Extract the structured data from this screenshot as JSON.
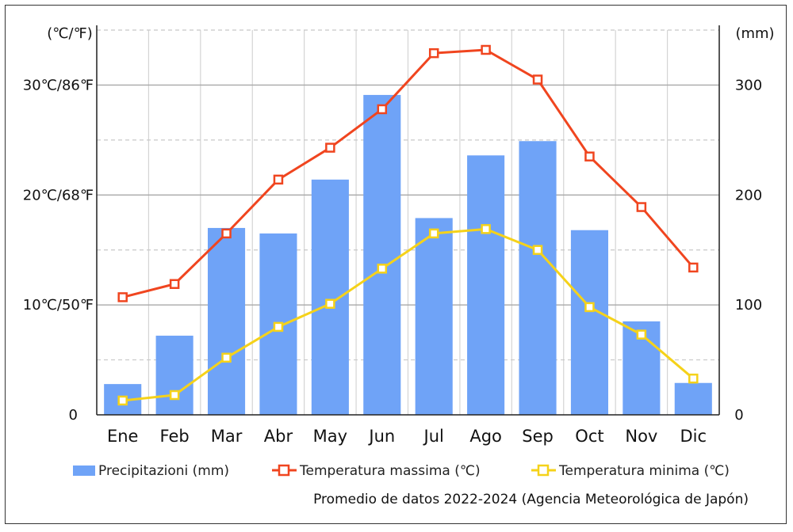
{
  "chart_data": {
    "type": "bar+line",
    "categories": [
      "Ene",
      "Feb",
      "Mar",
      "Abr",
      "May",
      "Jun",
      "Jul",
      "Ago",
      "Sep",
      "Oct",
      "Nov",
      "Dic"
    ],
    "left_axis": {
      "unit_label": "(℃/℉)",
      "ylim": [
        0,
        35
      ],
      "ticks": [
        {
          "value": 0,
          "label": "0"
        },
        {
          "value": 10,
          "label": "10℃/50℉"
        },
        {
          "value": 20,
          "label": "20℃/68℉"
        },
        {
          "value": 30,
          "label": "30℃/86℉"
        }
      ]
    },
    "right_axis": {
      "unit_label": "(mm)",
      "ylim": [
        0,
        350
      ],
      "ticks": [
        {
          "value": 0,
          "label": "0"
        },
        {
          "value": 100,
          "label": "100"
        },
        {
          "value": 200,
          "label": "200"
        },
        {
          "value": 300,
          "label": "300"
        }
      ]
    },
    "series": [
      {
        "name": "Precipitazioni (mm)",
        "type": "bar",
        "axis": "right",
        "color": "#6fa3f7",
        "values": [
          28,
          72,
          170,
          165,
          214,
          291,
          179,
          236,
          249,
          168,
          85,
          29
        ]
      },
      {
        "name": "Temperatura massima (℃)",
        "type": "line",
        "axis": "left",
        "color": "#f0451f",
        "values": [
          10.7,
          11.9,
          16.5,
          21.4,
          24.3,
          27.8,
          32.9,
          33.2,
          30.5,
          23.5,
          18.9,
          13.4
        ]
      },
      {
        "name": "Temperatura minima (℃)",
        "type": "line",
        "axis": "left",
        "color": "#f5d21a",
        "values": [
          1.3,
          1.8,
          5.2,
          8.0,
          10.1,
          13.3,
          16.5,
          16.9,
          15.0,
          9.8,
          7.3,
          3.3
        ]
      }
    ],
    "source": "Promedio de datos 2022-2024 (Agencia Meteorológica de Japón)",
    "legend_position": "bottom",
    "grid": true
  }
}
